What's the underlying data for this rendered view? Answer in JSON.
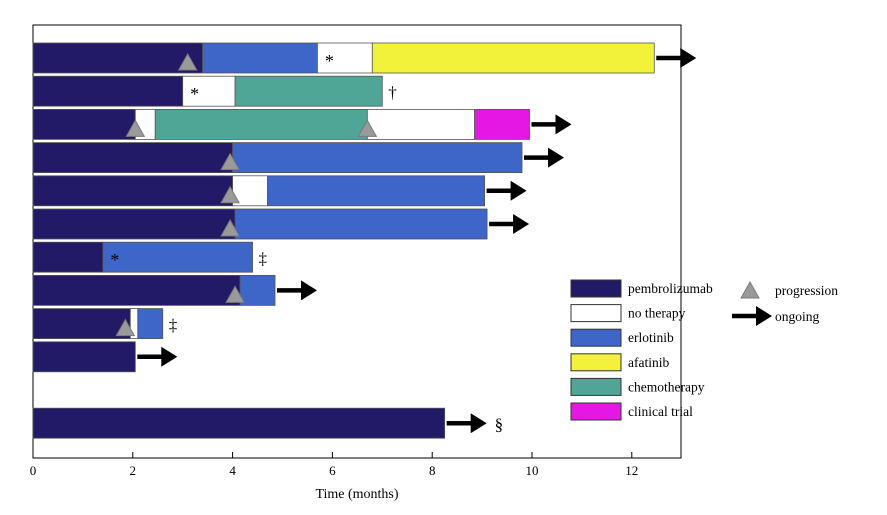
{
  "chart_data": {
    "type": "swimmer",
    "xlabel": "Time (months)",
    "xlim": [
      0,
      13
    ],
    "x_ticks": [
      0,
      2,
      4,
      6,
      8,
      10,
      12
    ],
    "colors": {
      "pembrolizumab": "#221a66",
      "no_therapy": "#ffffff",
      "erlotinib": "#3d66c8",
      "afatinib": "#f2f23a",
      "chemotherapy": "#4fa596",
      "clinical_trial": "#e417e4"
    },
    "legend": {
      "placement": "bottom-right",
      "items": [
        {
          "key": "pembrolizumab",
          "label": "pembrolizumab"
        },
        {
          "key": "no_therapy",
          "label": "no therapy"
        },
        {
          "key": "erlotinib",
          "label": "erlotinib"
        },
        {
          "key": "afatinib",
          "label": "afatinib"
        },
        {
          "key": "chemotherapy",
          "label": "chemotherapy"
        },
        {
          "key": "clinical_trial",
          "label": "clinical trial"
        }
      ],
      "symbols": [
        {
          "key": "progression",
          "label": "progression"
        },
        {
          "key": "ongoing",
          "label": "ongoing"
        }
      ]
    },
    "patients": [
      {
        "segments": [
          [
            "pembrolizumab",
            0,
            3.4
          ],
          [
            "erlotinib",
            3.4,
            5.7
          ],
          [
            "no_therapy",
            5.7,
            6.8
          ],
          [
            "afatinib",
            6.8,
            12.45
          ]
        ],
        "progression": [
          3.1
        ],
        "star": 5.85,
        "ongoing": true,
        "end_mark": ""
      },
      {
        "segments": [
          [
            "pembrolizumab",
            0,
            3.0
          ],
          [
            "no_therapy",
            3.0,
            4.05
          ],
          [
            "chemotherapy",
            4.05,
            7.0
          ]
        ],
        "progression": [],
        "star": 3.15,
        "ongoing": false,
        "end_mark": "†"
      },
      {
        "segments": [
          [
            "pembrolizumab",
            0,
            2.05
          ],
          [
            "no_therapy",
            2.05,
            2.45
          ],
          [
            "chemotherapy",
            2.45,
            6.7
          ],
          [
            "no_therapy",
            6.7,
            8.85
          ],
          [
            "clinical_trial",
            8.85,
            9.95
          ]
        ],
        "progression": [
          2.05,
          6.7
        ],
        "star": null,
        "ongoing": true,
        "end_mark": ""
      },
      {
        "segments": [
          [
            "pembrolizumab",
            0,
            4.0
          ],
          [
            "erlotinib",
            4.0,
            9.8
          ]
        ],
        "progression": [
          3.95
        ],
        "star": null,
        "ongoing": true,
        "end_mark": ""
      },
      {
        "segments": [
          [
            "pembrolizumab",
            0,
            4.0
          ],
          [
            "no_therapy",
            4.0,
            4.7
          ],
          [
            "erlotinib",
            4.7,
            9.05
          ]
        ],
        "progression": [
          3.95
        ],
        "star": null,
        "ongoing": true,
        "end_mark": ""
      },
      {
        "segments": [
          [
            "pembrolizumab",
            0,
            4.05
          ],
          [
            "erlotinib",
            4.05,
            9.1
          ]
        ],
        "progression": [
          3.95
        ],
        "star": null,
        "ongoing": true,
        "end_mark": ""
      },
      {
        "segments": [
          [
            "pembrolizumab",
            0,
            1.4
          ],
          [
            "erlotinib",
            1.4,
            4.4
          ]
        ],
        "progression": [],
        "star": 1.55,
        "ongoing": false,
        "end_mark": "‡"
      },
      {
        "segments": [
          [
            "pembrolizumab",
            0,
            4.15
          ],
          [
            "erlotinib",
            4.15,
            4.85
          ]
        ],
        "progression": [
          4.05
        ],
        "star": null,
        "ongoing": true,
        "end_mark": ""
      },
      {
        "segments": [
          [
            "pembrolizumab",
            0,
            1.95
          ],
          [
            "no_therapy",
            1.95,
            2.1
          ],
          [
            "erlotinib",
            2.1,
            2.6
          ]
        ],
        "progression": [
          1.85
        ],
        "star": null,
        "ongoing": false,
        "end_mark": "‡"
      },
      {
        "segments": [
          [
            "pembrolizumab",
            0,
            2.05
          ]
        ],
        "progression": [],
        "star": null,
        "ongoing": true,
        "end_mark": ""
      },
      {
        "segments": [],
        "progression": [],
        "star": null,
        "ongoing": false,
        "end_mark": ""
      },
      {
        "segments": [
          [
            "pembrolizumab",
            0,
            8.25
          ]
        ],
        "progression": [],
        "star": null,
        "ongoing": true,
        "end_mark": "§"
      }
    ]
  }
}
